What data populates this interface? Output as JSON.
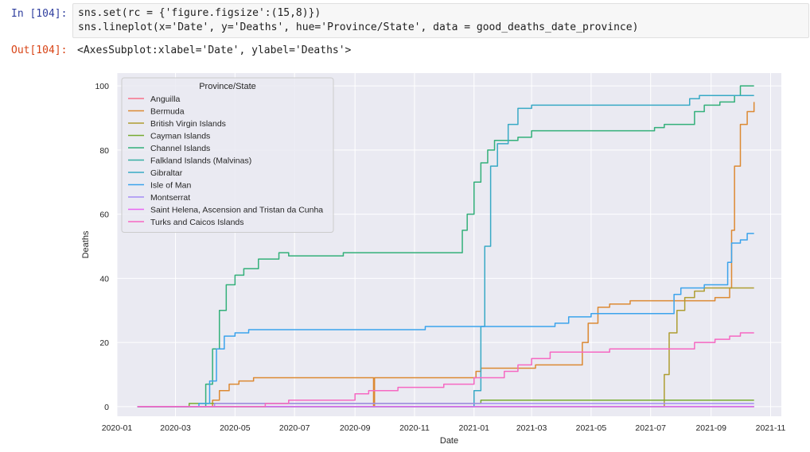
{
  "cell": {
    "in_prompt": "In [104]:",
    "out_prompt": "Out[104]:",
    "code": {
      "line1": "sns.set(rc = {'figure.figsize':(15,8)})",
      "line2": "sns.lineplot(x='Date', y='Deaths', hue='Province/State', data = good_deaths_date_province)"
    },
    "output_text": "<AxesSubplot:xlabel='Date', ylabel='Deaths'>"
  },
  "colors": {
    "prompt_in": "#303f9f",
    "prompt_out": "#d84315",
    "axes_bg": "#eaeaf2",
    "grid": "#ffffff"
  },
  "chart_data": {
    "type": "line",
    "title": "",
    "xlabel": "Date",
    "ylabel": "Deaths",
    "ylim": [
      -3,
      104
    ],
    "xlim": [
      "2020-01-01",
      "2021-11-12"
    ],
    "grid": true,
    "legend_position": "top-left",
    "legend_title": "Province/State",
    "x_ticks": [
      "2020-01",
      "2020-03",
      "2020-05",
      "2020-07",
      "2020-09",
      "2020-11",
      "2021-01",
      "2021-03",
      "2021-05",
      "2021-07",
      "2021-09",
      "2021-11"
    ],
    "y_ticks": [
      0,
      20,
      40,
      60,
      80,
      100
    ],
    "series": [
      {
        "name": "Anguilla",
        "color": "#f77189",
        "points": [
          [
            "2020-01-22",
            0
          ],
          [
            "2021-10-15",
            0
          ]
        ]
      },
      {
        "name": "Bermuda",
        "color": "#dc8932",
        "points": [
          [
            "2020-01-22",
            0
          ],
          [
            "2020-03-28",
            0
          ],
          [
            "2020-04-08",
            2
          ],
          [
            "2020-04-15",
            5
          ],
          [
            "2020-04-25",
            7
          ],
          [
            "2020-05-05",
            8
          ],
          [
            "2020-05-20",
            9
          ],
          [
            "2020-09-19",
            9
          ],
          [
            "2020-09-20",
            0
          ],
          [
            "2020-09-21",
            9
          ],
          [
            "2020-12-25",
            9
          ],
          [
            "2021-01-03",
            11
          ],
          [
            "2021-01-08",
            12
          ],
          [
            "2021-02-15",
            12
          ],
          [
            "2021-03-05",
            13
          ],
          [
            "2021-04-15",
            13
          ],
          [
            "2021-04-22",
            20
          ],
          [
            "2021-04-28",
            26
          ],
          [
            "2021-05-08",
            31
          ],
          [
            "2021-05-20",
            32
          ],
          [
            "2021-06-10",
            33
          ],
          [
            "2021-08-25",
            33
          ],
          [
            "2021-09-05",
            34
          ],
          [
            "2021-09-20",
            37
          ],
          [
            "2021-09-22",
            55
          ],
          [
            "2021-09-25",
            75
          ],
          [
            "2021-10-01",
            88
          ],
          [
            "2021-10-08",
            92
          ],
          [
            "2021-10-15",
            95
          ]
        ]
      },
      {
        "name": "British Virgin Islands",
        "color": "#ae9d31",
        "points": [
          [
            "2020-01-22",
            0
          ],
          [
            "2021-07-10",
            0
          ],
          [
            "2021-07-15",
            10
          ],
          [
            "2021-07-20",
            23
          ],
          [
            "2021-07-28",
            30
          ],
          [
            "2021-08-05",
            34
          ],
          [
            "2021-08-15",
            36
          ],
          [
            "2021-08-25",
            37
          ],
          [
            "2021-10-15",
            37
          ]
        ]
      },
      {
        "name": "Cayman Islands",
        "color": "#77ab31",
        "points": [
          [
            "2020-01-22",
            0
          ],
          [
            "2020-03-15",
            1
          ],
          [
            "2021-01-01",
            1
          ],
          [
            "2021-01-08",
            2
          ],
          [
            "2021-10-15",
            2
          ]
        ]
      },
      {
        "name": "Channel Islands",
        "color": "#33b07a",
        "points": [
          [
            "2020-01-22",
            0
          ],
          [
            "2020-03-20",
            0
          ],
          [
            "2020-04-01",
            7
          ],
          [
            "2020-04-08",
            18
          ],
          [
            "2020-04-15",
            30
          ],
          [
            "2020-04-22",
            38
          ],
          [
            "2020-05-01",
            41
          ],
          [
            "2020-05-10",
            43
          ],
          [
            "2020-05-25",
            46
          ],
          [
            "2020-06-15",
            48
          ],
          [
            "2020-06-25",
            47
          ],
          [
            "2020-08-10",
            47
          ],
          [
            "2020-08-20",
            48
          ],
          [
            "2020-12-15",
            48
          ],
          [
            "2020-12-20",
            55
          ],
          [
            "2020-12-25",
            60
          ],
          [
            "2021-01-01",
            70
          ],
          [
            "2021-01-08",
            76
          ],
          [
            "2021-01-15",
            80
          ],
          [
            "2021-01-22",
            83
          ],
          [
            "2021-02-15",
            84
          ],
          [
            "2021-03-01",
            86
          ],
          [
            "2021-07-01",
            86
          ],
          [
            "2021-07-05",
            87
          ],
          [
            "2021-07-15",
            88
          ],
          [
            "2021-08-10",
            88
          ],
          [
            "2021-08-15",
            92
          ],
          [
            "2021-08-25",
            94
          ],
          [
            "2021-09-10",
            95
          ],
          [
            "2021-09-25",
            97
          ],
          [
            "2021-10-01",
            100
          ],
          [
            "2021-10-15",
            100
          ]
        ]
      },
      {
        "name": "Falkland Islands (Malvinas)",
        "color": "#36ada4",
        "points": [
          [
            "2020-01-22",
            0
          ],
          [
            "2021-10-15",
            0
          ]
        ]
      },
      {
        "name": "Gibraltar",
        "color": "#38a9c5",
        "points": [
          [
            "2020-01-22",
            0
          ],
          [
            "2020-12-20",
            0
          ],
          [
            "2021-01-01",
            5
          ],
          [
            "2021-01-08",
            25
          ],
          [
            "2021-01-12",
            50
          ],
          [
            "2021-01-18",
            75
          ],
          [
            "2021-01-25",
            82
          ],
          [
            "2021-02-05",
            88
          ],
          [
            "2021-02-15",
            93
          ],
          [
            "2021-03-01",
            94
          ],
          [
            "2021-08-01",
            94
          ],
          [
            "2021-08-10",
            96
          ],
          [
            "2021-08-20",
            97
          ],
          [
            "2021-10-15",
            97
          ]
        ]
      },
      {
        "name": "Isle of Man",
        "color": "#3ba3ec",
        "points": [
          [
            "2020-01-22",
            0
          ],
          [
            "2020-03-25",
            1
          ],
          [
            "2020-04-05",
            8
          ],
          [
            "2020-04-12",
            18
          ],
          [
            "2020-04-20",
            22
          ],
          [
            "2020-05-01",
            23
          ],
          [
            "2020-05-15",
            24
          ],
          [
            "2020-11-10",
            24
          ],
          [
            "2020-11-12",
            25
          ],
          [
            "2021-03-15",
            25
          ],
          [
            "2021-03-25",
            26
          ],
          [
            "2021-04-08",
            28
          ],
          [
            "2021-05-01",
            29
          ],
          [
            "2021-07-20",
            29
          ],
          [
            "2021-07-25",
            35
          ],
          [
            "2021-08-01",
            37
          ],
          [
            "2021-08-15",
            37
          ],
          [
            "2021-08-25",
            38
          ],
          [
            "2021-09-15",
            38
          ],
          [
            "2021-09-18",
            45
          ],
          [
            "2021-09-22",
            51
          ],
          [
            "2021-10-01",
            52
          ],
          [
            "2021-10-08",
            54
          ],
          [
            "2021-10-15",
            54
          ]
        ]
      },
      {
        "name": "Montserrat",
        "color": "#a48cf4",
        "points": [
          [
            "2020-01-22",
            0
          ],
          [
            "2020-04-10",
            1
          ],
          [
            "2021-10-15",
            1
          ]
        ]
      },
      {
        "name": "Saint Helena, Ascension and Tristan da Cunha",
        "color": "#e866f4",
        "points": [
          [
            "2020-01-22",
            0
          ],
          [
            "2021-10-15",
            0
          ]
        ]
      },
      {
        "name": "Turks and Caicos Islands",
        "color": "#f668c2",
        "points": [
          [
            "2020-01-22",
            0
          ],
          [
            "2020-06-01",
            1
          ],
          [
            "2020-06-25",
            2
          ],
          [
            "2020-09-01",
            4
          ],
          [
            "2020-09-15",
            5
          ],
          [
            "2020-10-15",
            6
          ],
          [
            "2020-12-01",
            7
          ],
          [
            "2021-01-01",
            9
          ],
          [
            "2021-02-01",
            11
          ],
          [
            "2021-02-15",
            13
          ],
          [
            "2021-03-01",
            15
          ],
          [
            "2021-03-20",
            17
          ],
          [
            "2021-05-15",
            17
          ],
          [
            "2021-05-20",
            18
          ],
          [
            "2021-08-01",
            18
          ],
          [
            "2021-08-15",
            20
          ],
          [
            "2021-09-05",
            21
          ],
          [
            "2021-09-20",
            22
          ],
          [
            "2021-10-01",
            23
          ],
          [
            "2021-10-15",
            23
          ]
        ]
      }
    ]
  }
}
